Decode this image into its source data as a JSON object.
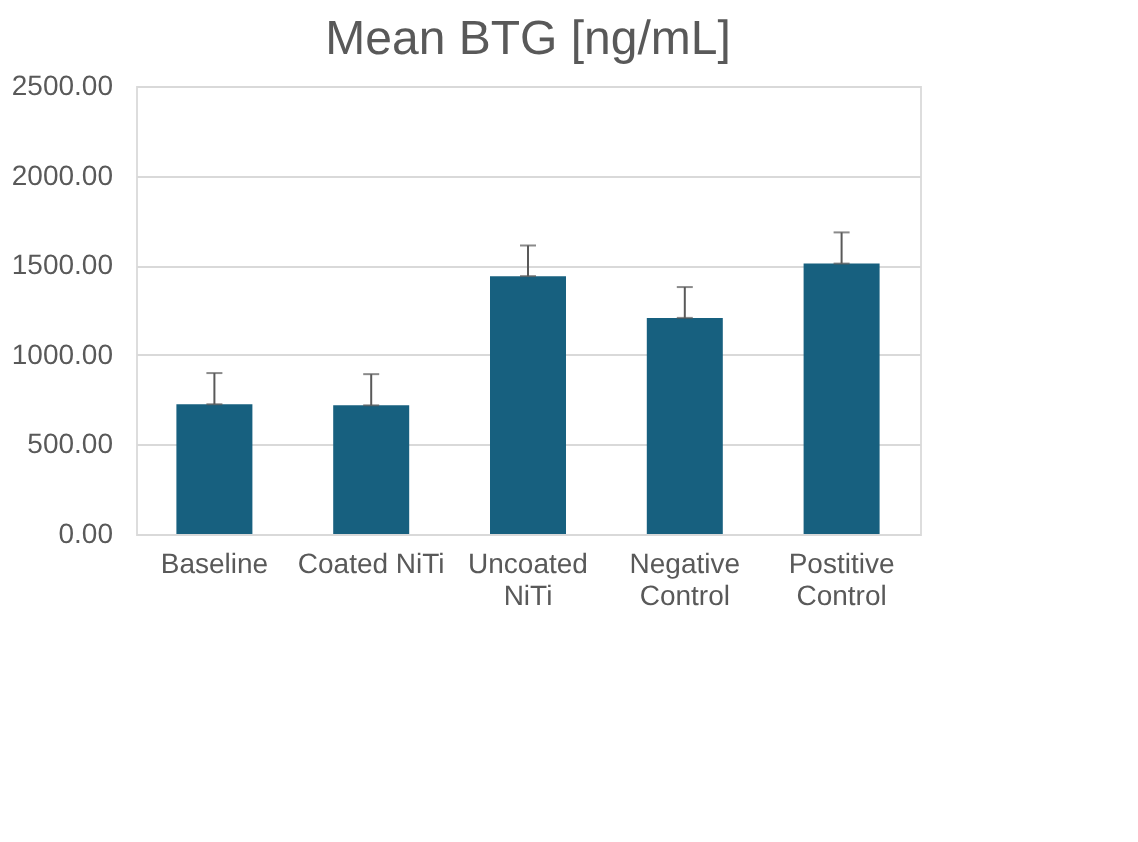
{
  "chart_data": {
    "type": "bar",
    "title": "Mean BTG [ng/mL]",
    "categories": [
      "Baseline",
      "Coated NiTi",
      "Uncoated\nNiTi",
      "Negative\nControl",
      "Postitive\nControl"
    ],
    "values": [
      724,
      718,
      1439,
      1206,
      1509
    ],
    "errors": [
      [
        724,
        898
      ],
      [
        718,
        892
      ],
      [
        1439,
        1610
      ],
      [
        1206,
        1378
      ],
      [
        1509,
        1683
      ]
    ],
    "color": "#17607f",
    "ylim": [
      0,
      2500
    ],
    "yticks": [
      {
        "value": 0,
        "label": "0.00"
      },
      {
        "value": 500,
        "label": "500.00"
      },
      {
        "value": 1000,
        "label": "1000.00"
      },
      {
        "value": 1500,
        "label": "1500.00"
      },
      {
        "value": 2000,
        "label": "2000.00"
      },
      {
        "value": 2500,
        "label": "2500.00"
      }
    ],
    "grid": "y"
  }
}
